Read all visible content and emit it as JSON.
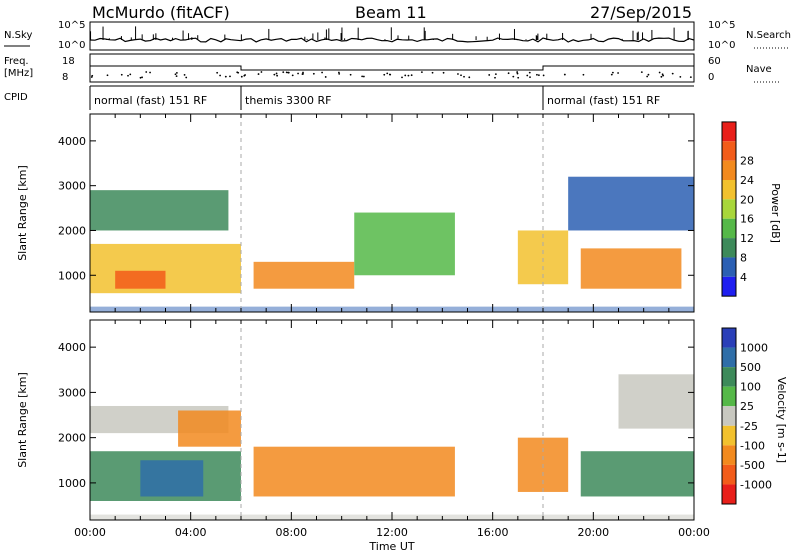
{
  "header": {
    "station": "McMurdo (fitACF)",
    "beam": "Beam 11",
    "date": "27/Sep/2015"
  },
  "top_panel": {
    "left_label_1": "N.Sky",
    "left_label_2": "Freq.",
    "left_label_3": "[MHz]",
    "left_label_4": "CPID",
    "right_label_1": "N.Search",
    "right_label_2": "Nave",
    "y1_ticks": [
      "10^5",
      "10^0"
    ],
    "y2_ticks": [
      "18",
      "8"
    ],
    "r1_ticks": [
      "10^5",
      "10^0"
    ],
    "r2_ticks": [
      "60",
      "0"
    ]
  },
  "cpid_segments": [
    {
      "label": "normal (fast) 151 RF",
      "start": 0,
      "end": 6
    },
    {
      "label": "themis 3300 RF",
      "start": 6,
      "end": 18
    },
    {
      "label": "normal (fast) 151 RF",
      "start": 18,
      "end": 24
    }
  ],
  "chart_data": [
    {
      "type": "heatmap",
      "title": "",
      "xlabel": "Time UT",
      "ylabel": "Slant Range [km]",
      "xlim": [
        0,
        24
      ],
      "ylim": [
        180,
        4600
      ],
      "x_tick_labels": [
        "00:00",
        "04:00",
        "08:00",
        "12:00",
        "16:00",
        "20:00",
        "00:00"
      ],
      "y_ticks": [
        1000,
        2000,
        3000,
        4000
      ],
      "colorbar_label": "Power [dB]",
      "colorbar_ticks": [
        "4",
        "8",
        "12",
        "16",
        "20",
        "24",
        "28"
      ],
      "colorbar_colors": [
        "#1f1ff0",
        "#2b5fb3",
        "#3d8a5a",
        "#55b848",
        "#a8d63a",
        "#f2c12e",
        "#f28a1e",
        "#f25c1a",
        "#e81f1a"
      ],
      "regions": [
        {
          "x": [
            0.0,
            6.0
          ],
          "y": [
            600,
            1700
          ],
          "value": 24
        },
        {
          "x": [
            1.0,
            3.0
          ],
          "y": [
            700,
            1100
          ],
          "value": 30
        },
        {
          "x": [
            6.5,
            10.5
          ],
          "y": [
            700,
            1300
          ],
          "value": 28
        },
        {
          "x": [
            10.5,
            14.5
          ],
          "y": [
            1000,
            2400
          ],
          "value": 16
        },
        {
          "x": [
            0.0,
            5.5
          ],
          "y": [
            2000,
            2900
          ],
          "value": 12
        },
        {
          "x": [
            17.0,
            19.0
          ],
          "y": [
            800,
            2000
          ],
          "value": 22
        },
        {
          "x": [
            19.5,
            23.5
          ],
          "y": [
            700,
            1600
          ],
          "value": 26
        },
        {
          "x": [
            19.0,
            24.0
          ],
          "y": [
            2000,
            3200
          ],
          "value": 8
        }
      ]
    },
    {
      "type": "heatmap",
      "title": "",
      "xlabel": "Time UT",
      "ylabel": "Slant Range [km]",
      "xlim": [
        0,
        24
      ],
      "ylim": [
        180,
        4600
      ],
      "x_tick_labels": [
        "00:00",
        "04:00",
        "08:00",
        "12:00",
        "16:00",
        "20:00",
        "00:00"
      ],
      "y_ticks": [
        1000,
        2000,
        3000,
        4000
      ],
      "colorbar_label": "Velocity [m s-1]",
      "colorbar_ticks": [
        "1000",
        "500",
        "100",
        "25",
        "-25",
        "-100",
        "-500",
        "-1000"
      ],
      "colorbar_colors": [
        "#2a3fb8",
        "#2f6ea8",
        "#3d8a5a",
        "#55b848",
        "#c8c8c0",
        "#f2c12e",
        "#f28a1e",
        "#f25c1a",
        "#e81f1a"
      ],
      "regions": [
        {
          "x": [
            0.0,
            6.0
          ],
          "y": [
            600,
            1700
          ],
          "value": 100
        },
        {
          "x": [
            2.0,
            4.5
          ],
          "y": [
            700,
            1500
          ],
          "value": 500
        },
        {
          "x": [
            0.0,
            5.5
          ],
          "y": [
            2100,
            2700
          ],
          "value": 0
        },
        {
          "x": [
            6.5,
            14.5
          ],
          "y": [
            700,
            1800
          ],
          "value": -300
        },
        {
          "x": [
            3.5,
            6.0
          ],
          "y": [
            1800,
            2600
          ],
          "value": -300
        },
        {
          "x": [
            17.0,
            19.0
          ],
          "y": [
            800,
            2000
          ],
          "value": -300
        },
        {
          "x": [
            19.5,
            24.0
          ],
          "y": [
            700,
            1700
          ],
          "value": 100
        },
        {
          "x": [
            21.0,
            24.0
          ],
          "y": [
            2200,
            3400
          ],
          "value": 0
        }
      ]
    }
  ]
}
